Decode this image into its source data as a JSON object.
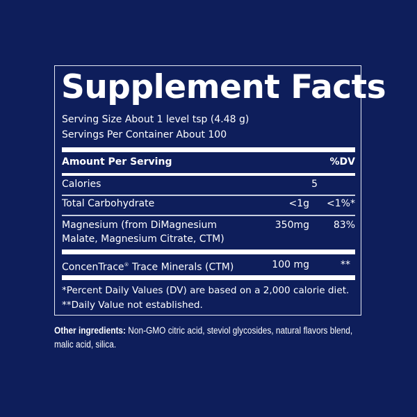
{
  "title": "Supplement Facts",
  "serving_size": "Serving Size About 1 level tsp (4.48 g)",
  "servings_per_container": "Servings Per Container About 100",
  "header": {
    "amount": "Amount Per Serving",
    "dv": "%DV"
  },
  "rows": [
    {
      "name": "Calories",
      "amount": "5",
      "dv": ""
    },
    {
      "name": "Total Carbohydrate",
      "amount": "<1g",
      "dv": "<1%*"
    },
    {
      "name_line1": "Magnesium (from DiMagnesium",
      "name_line2": "Malate, Magnesium Citrate, CTM)",
      "amount": "350mg",
      "dv": "83%"
    },
    {
      "name": "ConcenTrace",
      "trademark": "®",
      "name_rest": " Trace Minerals (CTM)",
      "amount": "100 mg",
      "dv": "**"
    }
  ],
  "footnotes": [
    "*Percent Daily Values (DV) are based on a 2,000 calorie diet.",
    "**Daily Value not established."
  ],
  "other_ingredients": {
    "label": "Other ingredients:",
    "text": " Non-GMO citric acid, steviol glycosides, natural flavors blend, malic acid, silica."
  },
  "colors": {
    "background": "#0e1e5b",
    "text": "#ffffff"
  }
}
